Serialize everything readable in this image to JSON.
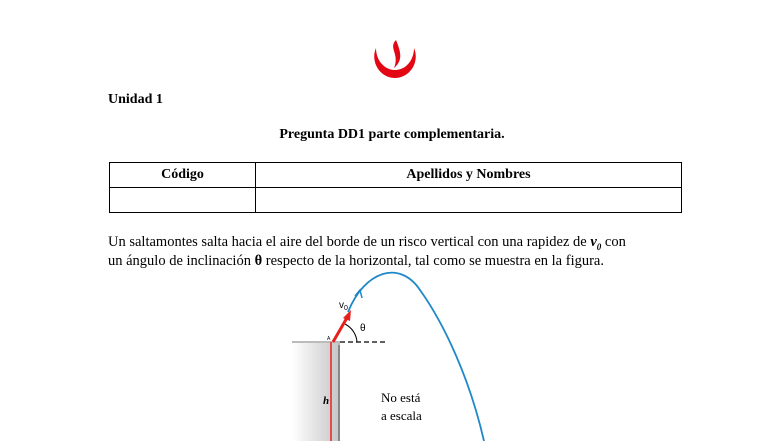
{
  "logo": {
    "name": "upc-flame-logo",
    "color": "#e30613"
  },
  "unit": "Unidad 1",
  "title": "Pregunta DD1 parte complementaria.",
  "table": {
    "headers": [
      "Código",
      "Apellidos y Nombres"
    ],
    "rows": [
      [
        "",
        ""
      ]
    ]
  },
  "paragraph": {
    "line1_a": "Un saltamontes salta hacia el aire del borde de un risco vertical con una rapidez de ",
    "v0": "v",
    "v0_sub": "0",
    "line1_b": " con",
    "line2_a": "un ángulo de inclinación ",
    "theta": "θ",
    "line2_b": " respecto de la horizontal, tal como se muestra en la figura."
  },
  "figure": {
    "v_label": "v",
    "v_sub": "0",
    "theta_label": "θ",
    "point_label": "A",
    "height_label": "h",
    "note_line1": "No está",
    "note_line2": "a escala",
    "arrow_color": "#e8201c",
    "trajectory_color": "#1f88c9"
  }
}
